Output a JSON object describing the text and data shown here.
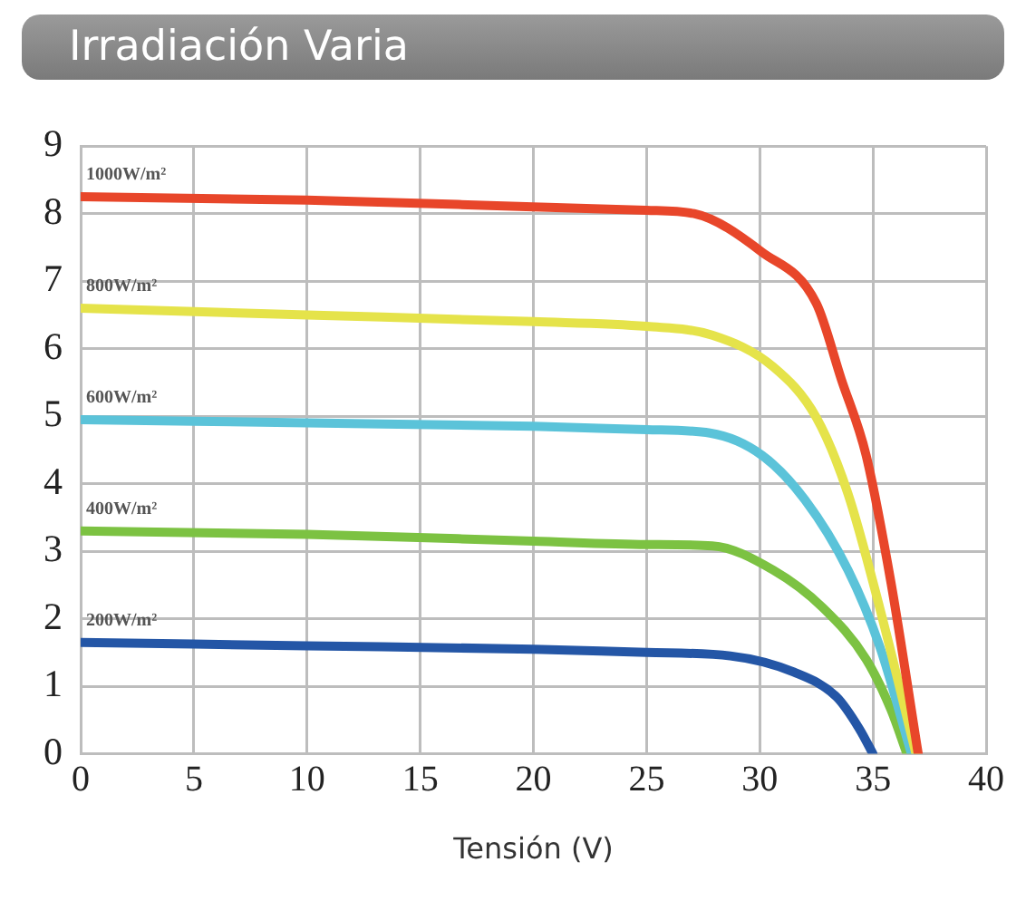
{
  "chart_data": {
    "type": "line",
    "title": "Irradiación Varia",
    "xlabel": "Tensión (V)",
    "xlim": [
      0,
      40
    ],
    "xticks": [
      0,
      5,
      10,
      15,
      20,
      25,
      30,
      35,
      40
    ],
    "ylim": [
      0,
      9
    ],
    "yticks": [
      0,
      1,
      2,
      3,
      4,
      5,
      6,
      7,
      8,
      9
    ],
    "grid": true,
    "legend": false,
    "marker": "none",
    "line_style": "solid",
    "series": [
      {
        "name": "1000W/m²",
        "color": "#e8462a",
        "x": [
          0,
          10,
          20,
          25,
          27.1,
          30.1,
          32.5,
          33.6,
          34.7,
          35.8,
          37.0
        ],
        "values": [
          8.25,
          8.2,
          8.1,
          8.05,
          8.0,
          7.43,
          6.67,
          5.55,
          4.42,
          2.53,
          0
        ]
      },
      {
        "name": "800W/m²",
        "color": "#e5e34a",
        "x": [
          0,
          10,
          20,
          25,
          27.9,
          30.6,
          32.5,
          33.9,
          35.3,
          36.9
        ],
        "values": [
          6.6,
          6.5,
          6.4,
          6.33,
          6.2,
          5.73,
          4.98,
          3.85,
          2.16,
          0
        ]
      },
      {
        "name": "600W/m²",
        "color": "#5bc3d9",
        "x": [
          0,
          10,
          20,
          25,
          27.8,
          30.1,
          32.0,
          33.9,
          35.3,
          36.7
        ],
        "values": [
          4.95,
          4.9,
          4.85,
          4.8,
          4.75,
          4.42,
          3.76,
          2.72,
          1.59,
          0
        ]
      },
      {
        "name": "400W/m²",
        "color": "#7cc242",
        "x": [
          0,
          10,
          20,
          25,
          27.9,
          30.6,
          32.8,
          34.7,
          35.8,
          36.5
        ],
        "values": [
          3.3,
          3.25,
          3.15,
          3.1,
          3.08,
          2.72,
          2.16,
          1.4,
          0.65,
          0
        ]
      },
      {
        "name": "200W/m²",
        "color": "#2456a6",
        "x": [
          0,
          10,
          20,
          25,
          28.7,
          31.5,
          33.4,
          34.4,
          35.0
        ],
        "values": [
          1.65,
          1.6,
          1.55,
          1.5,
          1.45,
          1.21,
          0.84,
          0.37,
          0
        ]
      }
    ]
  }
}
